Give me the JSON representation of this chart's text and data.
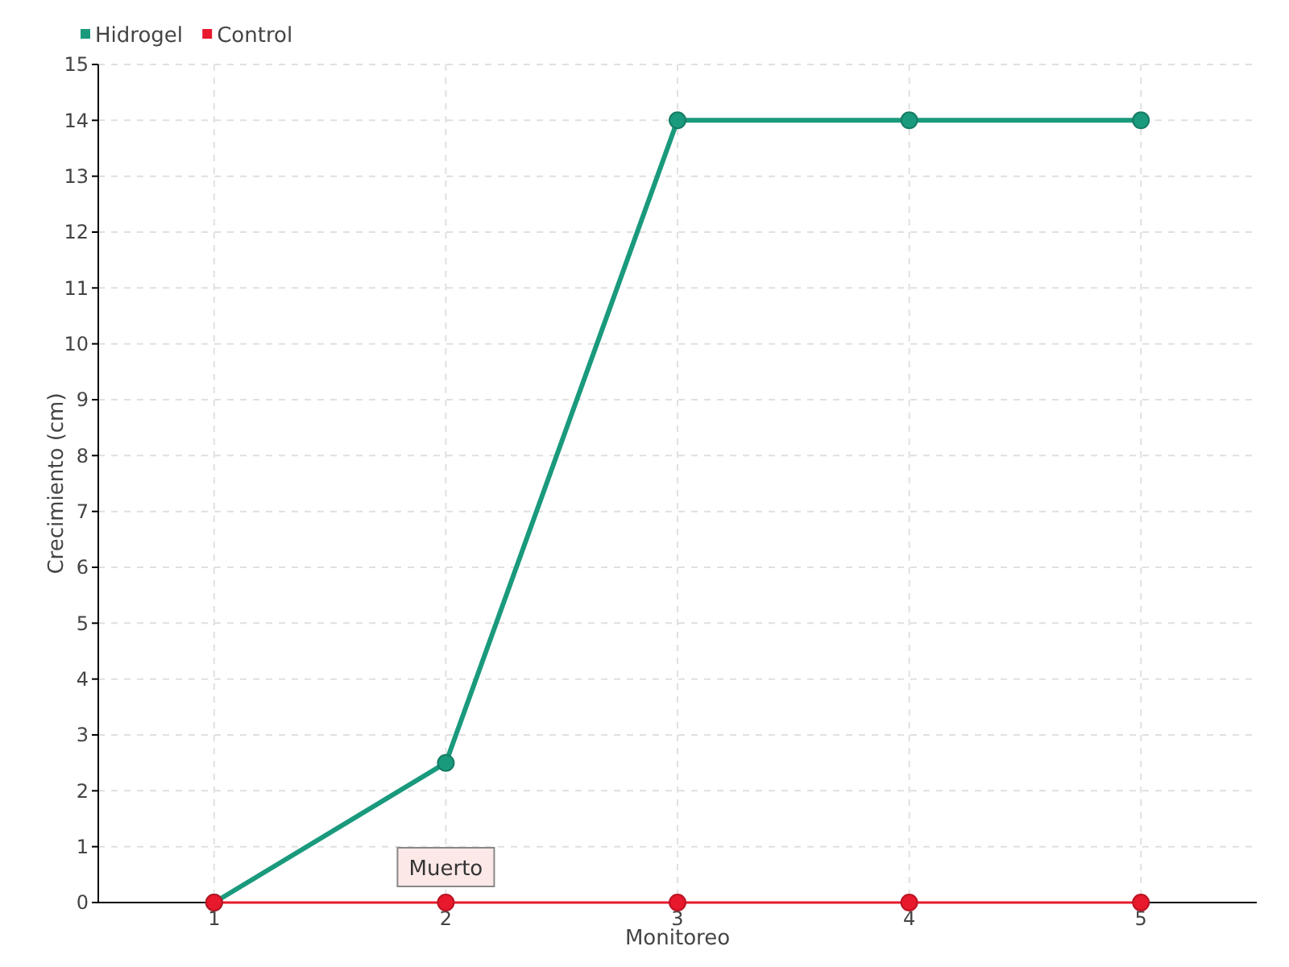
{
  "chart_data": {
    "type": "line",
    "xlabel": "Monitoreo",
    "ylabel": "Crecimiento (cm)",
    "x": [
      1,
      2,
      3,
      4,
      5
    ],
    "series": [
      {
        "name": "Hidrogel",
        "color": "#1a9a7c",
        "values": [
          0,
          2.5,
          14,
          14,
          14
        ]
      },
      {
        "name": "Control",
        "color": "#e8192c",
        "values": [
          0,
          0,
          0,
          0,
          0
        ]
      }
    ],
    "xlim": [
      0.5,
      5.5
    ],
    "xticks": [
      1,
      2,
      3,
      4,
      5
    ],
    "ylim": [
      0,
      15
    ],
    "yticks": [
      0,
      1,
      2,
      3,
      4,
      5,
      6,
      7,
      8,
      9,
      10,
      11,
      12,
      13,
      14,
      15
    ],
    "grid": true,
    "legend": "top left",
    "marker": "circle",
    "line_style": "solid",
    "annotations": [
      {
        "text": "Muerto",
        "x": 2,
        "y": 0
      }
    ]
  }
}
